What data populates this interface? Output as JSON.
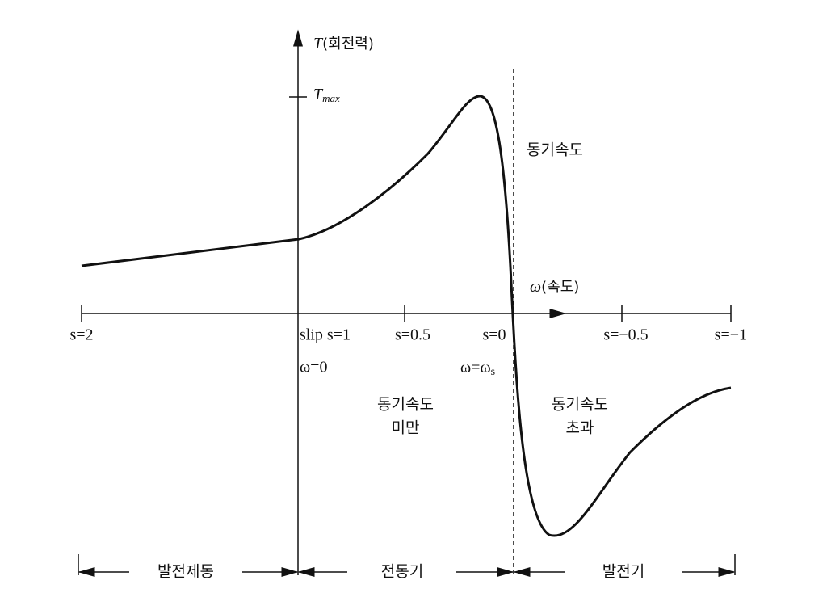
{
  "y_axis": {
    "symbol": "T",
    "label": "(회전력)",
    "max_symbol": "T",
    "max_subscript": "max"
  },
  "x_axis": {
    "symbol": "ω",
    "label": "(속도)"
  },
  "sync_label": "동기속도",
  "ticks": [
    "s=2",
    "slip s=1",
    "s=0.5",
    "s=0",
    "s=−0.5",
    "s=−1"
  ],
  "omega_labels": {
    "zero": "ω=0",
    "sync": "ω=ω",
    "sync_subscript": "s"
  },
  "regions": {
    "below": [
      "동기속도",
      "미만"
    ],
    "above": [
      "동기속도",
      "초과"
    ]
  },
  "modes": [
    "발전제동",
    "전동기",
    "발전기"
  ]
}
